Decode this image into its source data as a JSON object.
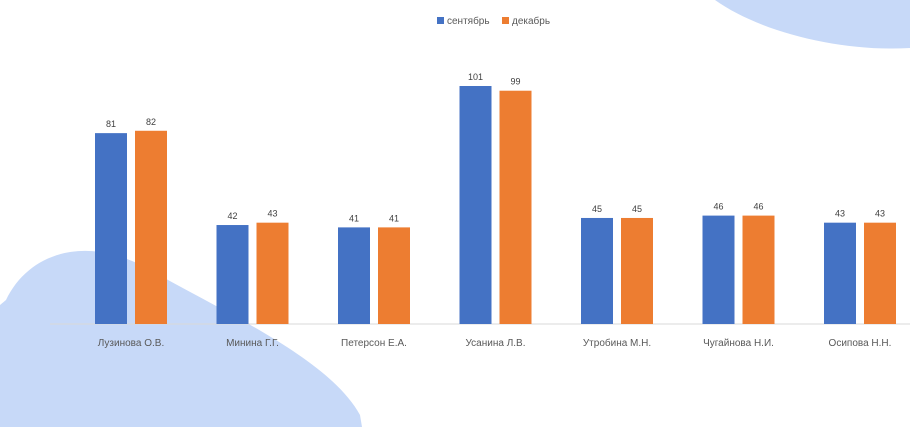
{
  "colors": {
    "september": "#4472C4",
    "december": "#ED7D31",
    "background_blob": "#C7D9F8",
    "baseline": "#D9D9D9",
    "text": "#595959",
    "label": "#404040"
  },
  "chart_data": {
    "type": "bar",
    "categories": [
      "Лузинова О.В.",
      "Минина Г.Г.",
      "Петерсон Е.А.",
      "Усанина Л.В.",
      "Утробина М.Н.",
      "Чугайнова Н.И.",
      "Осипова Н.Н."
    ],
    "series": [
      {
        "name": "сентябрь",
        "values": [
          81,
          42,
          41,
          101,
          45,
          46,
          43
        ]
      },
      {
        "name": "декабрь",
        "values": [
          82,
          43,
          41,
          99,
          45,
          46,
          43
        ]
      }
    ],
    "title": "",
    "xlabel": "",
    "ylabel": "",
    "ylim": [
      0,
      101
    ],
    "grid": false,
    "legend": "top-center",
    "data_labels": true
  }
}
